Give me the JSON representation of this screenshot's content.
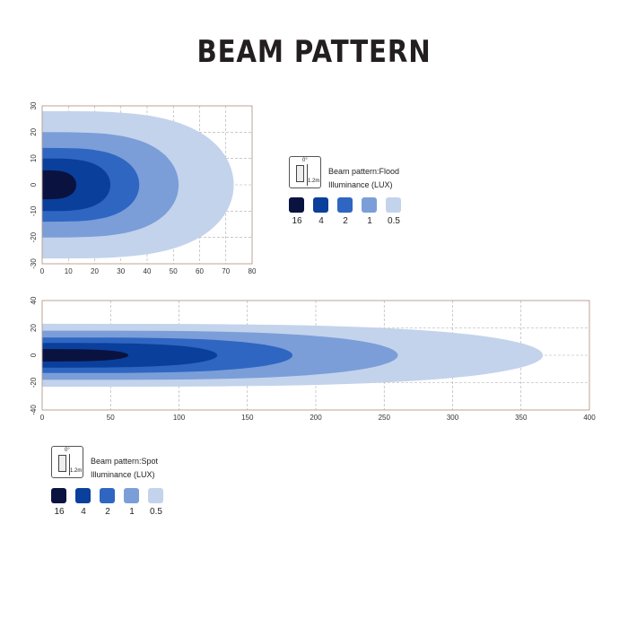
{
  "page_title": "BEAM PATTERN",
  "colors": {
    "level_16": "#0a1240",
    "level_4": "#0b3f9c",
    "level_2": "#2f66c2",
    "level_1": "#7b9ed8",
    "level_05": "#c3d3ec",
    "frame": "#b89a8a",
    "grid": "#aaaaaa"
  },
  "legend_levels": [
    "16",
    "4",
    "2",
    "1",
    "0.5"
  ],
  "chart_data": [
    {
      "type": "contour",
      "legend": {
        "pattern_label": "Beam pattern:Flood",
        "units_label": "Illuminance (LUX)",
        "icon_angle": "0°",
        "icon_height": "1.2m"
      },
      "xlim": [
        0,
        80
      ],
      "ylim": [
        -30,
        30
      ],
      "x_ticks": [
        "0",
        "10",
        "20",
        "30",
        "40",
        "50",
        "60",
        "70",
        "80"
      ],
      "y_ticks": [
        "30",
        "20",
        "10",
        "0",
        "-10",
        "-20",
        "-30"
      ],
      "series": [
        {
          "name": "0.5",
          "reach": 73,
          "half_width": 28
        },
        {
          "name": "1",
          "reach": 52,
          "half_width": 20
        },
        {
          "name": "2",
          "reach": 37,
          "half_width": 14
        },
        {
          "name": "4",
          "reach": 26,
          "half_width": 10
        },
        {
          "name": "16",
          "reach": 13,
          "half_width": 5.5
        }
      ]
    },
    {
      "type": "contour",
      "legend": {
        "pattern_label": "Beam pattern:Spot",
        "units_label": "Illuminance (LUX)",
        "icon_angle": "0°",
        "icon_height": "1.2m"
      },
      "xlim": [
        0,
        400
      ],
      "ylim": [
        -40,
        40
      ],
      "x_ticks": [
        "0",
        "50",
        "100",
        "150",
        "200",
        "250",
        "300",
        "350",
        "400"
      ],
      "y_ticks": [
        "40",
        "20",
        "0",
        "-20",
        "-40"
      ],
      "series": [
        {
          "name": "0.5",
          "reach": 366,
          "half_width": 23
        },
        {
          "name": "1",
          "reach": 260,
          "half_width": 18
        },
        {
          "name": "2",
          "reach": 183,
          "half_width": 13
        },
        {
          "name": "4",
          "reach": 128,
          "half_width": 9
        },
        {
          "name": "16",
          "reach": 63,
          "half_width": 4.5
        }
      ]
    }
  ]
}
